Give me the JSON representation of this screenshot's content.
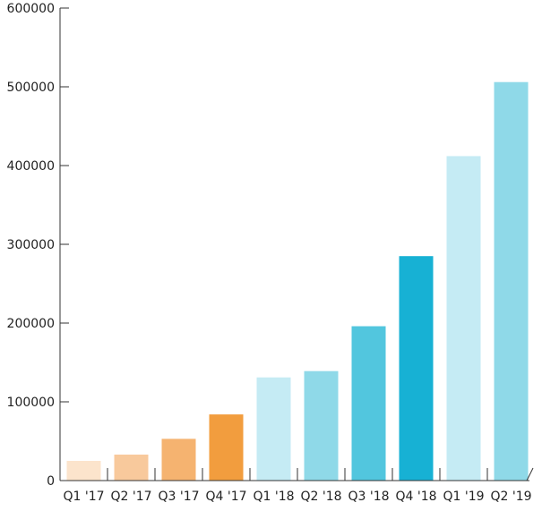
{
  "chart_data": {
    "type": "bar",
    "title": "",
    "xlabel": "",
    "ylabel": "",
    "categories": [
      "Q1 '17",
      "Q2 '17",
      "Q3 '17",
      "Q4 '17",
      "Q1 '18",
      "Q2 '18",
      "Q3 '18",
      "Q4 '18",
      "Q1 '19",
      "Q2 '19"
    ],
    "values": [
      25000,
      33000,
      53000,
      84000,
      131000,
      139000,
      196000,
      285000,
      412000,
      506000
    ],
    "colors": [
      "#fce4cc",
      "#f8c99c",
      "#f5b370",
      "#f29d3e",
      "#c5ebf4",
      "#8fd9e8",
      "#52c6de",
      "#17b1d4",
      "#c5ebf4",
      "#8fd9e8"
    ],
    "ylim": [
      0,
      600000
    ],
    "yticks": [
      0,
      100000,
      200000,
      300000,
      400000,
      500000,
      600000
    ],
    "ytick_labels": [
      "0",
      "100000",
      "200000",
      "300000",
      "400000",
      "500000",
      "600000"
    ],
    "grid": false,
    "legend": "none"
  }
}
